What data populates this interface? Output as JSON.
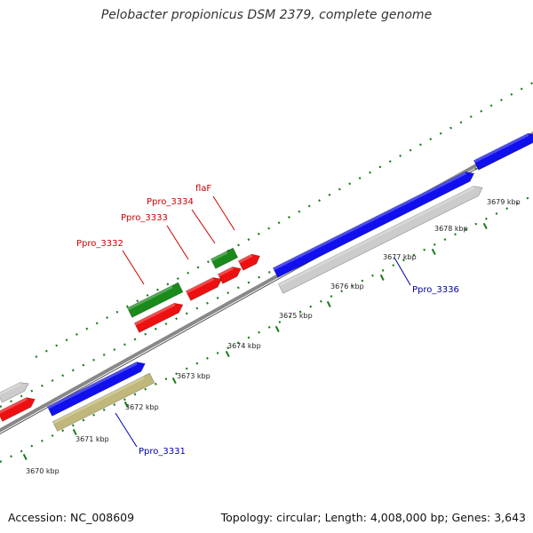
{
  "title": "Pelobacter propionicus DSM 2379, complete genome",
  "footer": {
    "accession": "Accession: NC_008609",
    "summary": "Topology: circular; Length: 4,008,000 bp; Genes: 3,643"
  },
  "colors": {
    "backbone": "#888888",
    "tick": "#1a7a1a",
    "label_red": "#cc0000",
    "label_blue": "#0000aa",
    "blue": "#1010ee",
    "red": "#ee1010",
    "green": "#1a8a1a",
    "gray": "#cccccc",
    "olive": "#c0b87a"
  },
  "ticks": [
    {
      "label": "3670 kbp"
    },
    {
      "label": "3671 kbp"
    },
    {
      "label": "3672 kbp"
    },
    {
      "label": "3673 kbp"
    },
    {
      "label": "3674 kbp"
    },
    {
      "label": "3675 kbp"
    },
    {
      "label": "3676 kbp"
    },
    {
      "label": "3677 kbp"
    },
    {
      "label": "3678 kbp"
    },
    {
      "label": "3679 kbp"
    }
  ],
  "gene_labels": [
    {
      "text": "Ppro_3332",
      "color": "red"
    },
    {
      "text": "Ppro_3333",
      "color": "red"
    },
    {
      "text": "Ppro_3334",
      "color": "red"
    },
    {
      "text": "flaF",
      "color": "red"
    },
    {
      "text": "Ppro_3336",
      "color": "blue"
    },
    {
      "text": "Ppro_3331",
      "color": "blue"
    }
  ]
}
